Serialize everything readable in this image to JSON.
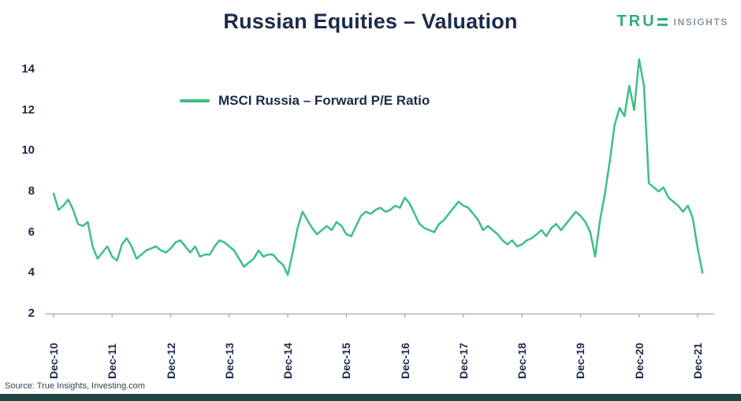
{
  "header": {
    "title": "Russian Equities – Valuation",
    "logo": {
      "prefix": "TRU",
      "suffix": "INSIGHTS"
    }
  },
  "footer": {
    "source": "Source: True Insights, Investing.com"
  },
  "colors": {
    "line_green": "#3cc084",
    "navy": "#1b2b4b",
    "logo_teal": "#2fae7e",
    "logo_gray": "#8b97a5",
    "axis_gray": "#b3b3b3",
    "footer_bar": "#1d4645"
  },
  "chart_data": {
    "type": "line",
    "title": "Russian Equities – Valuation",
    "xlabel": "",
    "ylabel": "",
    "grid": false,
    "legend_position": "top-center",
    "ylim": [
      2,
      15
    ],
    "y_ticks": [
      2,
      4,
      6,
      8,
      10,
      12,
      14
    ],
    "x_tick_labels": [
      "Dec-10",
      "Dec-11",
      "Dec-12",
      "Dec-13",
      "Dec-14",
      "Dec-15",
      "Dec-16",
      "Dec-17",
      "Dec-18",
      "Dec-19",
      "Dec-20",
      "Dec-21"
    ],
    "x_tick_interval_months": 12,
    "series": [
      {
        "name": "MSCI Russia – Forward P/E Ratio",
        "color": "#3cc084",
        "start": "Dec-10",
        "frequency": "monthly",
        "values": [
          7.9,
          7.1,
          7.3,
          7.6,
          7.1,
          6.4,
          6.3,
          6.5,
          5.3,
          4.7,
          5.0,
          5.3,
          4.8,
          4.6,
          5.4,
          5.7,
          5.3,
          4.7,
          4.9,
          5.1,
          5.2,
          5.3,
          5.1,
          5.0,
          5.2,
          5.5,
          5.6,
          5.3,
          5.0,
          5.3,
          4.8,
          4.9,
          4.9,
          5.3,
          5.6,
          5.5,
          5.3,
          5.1,
          4.7,
          4.3,
          4.5,
          4.7,
          5.1,
          4.8,
          4.9,
          4.9,
          4.6,
          4.4,
          3.9,
          5.0,
          6.2,
          7.0,
          6.6,
          6.2,
          5.9,
          6.1,
          6.3,
          6.1,
          6.5,
          6.3,
          5.9,
          5.8,
          6.3,
          6.8,
          7.0,
          6.9,
          7.1,
          7.2,
          7.0,
          7.1,
          7.3,
          7.2,
          7.7,
          7.4,
          6.9,
          6.4,
          6.2,
          6.1,
          6.0,
          6.4,
          6.6,
          6.9,
          7.2,
          7.5,
          7.3,
          7.2,
          6.9,
          6.6,
          6.1,
          6.3,
          6.1,
          5.9,
          5.6,
          5.4,
          5.6,
          5.3,
          5.4,
          5.6,
          5.7,
          5.9,
          6.1,
          5.8,
          6.2,
          6.4,
          6.1,
          6.4,
          6.7,
          7.0,
          6.8,
          6.5,
          6.0,
          4.8,
          6.6,
          7.9,
          9.5,
          11.3,
          12.1,
          11.7,
          13.2,
          12.0,
          14.5,
          13.2,
          8.4,
          8.2,
          8.0,
          8.2,
          7.7,
          7.5,
          7.3,
          7.0,
          7.3,
          6.7,
          5.2,
          4.0
        ]
      }
    ]
  }
}
